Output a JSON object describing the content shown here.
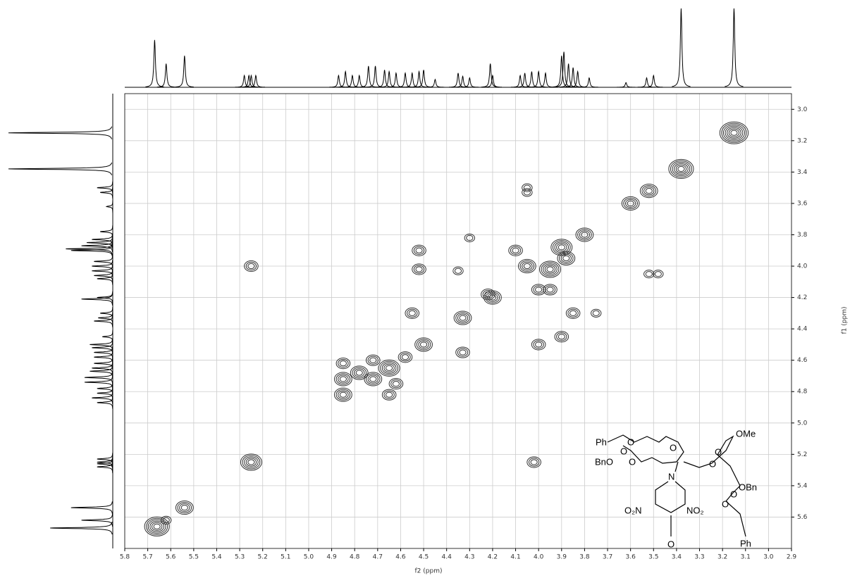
{
  "chart_data": {
    "type": "contour",
    "x_label": "f2 (ppm)",
    "y_label": "f1 (ppm)",
    "xlim": [
      5.8,
      2.9
    ],
    "ylim": [
      2.9,
      5.8
    ],
    "xticks": [
      5.8,
      5.7,
      5.6,
      5.5,
      5.4,
      5.3,
      5.2,
      5.1,
      {
        "value": 5,
        "label": "5.0"
      },
      4.9,
      4.8,
      4.7,
      4.6,
      4.5,
      4.4,
      4.3,
      4.2,
      4.1,
      {
        "value": 4,
        "label": "4.0"
      },
      3.9,
      3.8,
      3.7,
      3.6,
      3.5,
      3.4,
      3.3,
      3.2,
      3.1,
      {
        "value": 3,
        "label": "3.0"
      },
      2.9
    ],
    "yticks": [
      {
        "value": 3,
        "label": "3.0"
      },
      3.2,
      3.4,
      3.6,
      3.8,
      {
        "value": 4,
        "label": "4.0"
      },
      4.2,
      4.4,
      4.6,
      4.8,
      {
        "value": 5,
        "label": "5.0"
      },
      5.2,
      5.4,
      5.6
    ],
    "grid": true,
    "color": "#333333",
    "peaks": {
      "x": [
        3.15,
        3.38,
        3.52,
        3.6,
        3.52,
        3.48,
        4.05,
        4.05,
        3.8,
        3.9,
        3.88,
        3.95,
        4.05,
        4.0,
        4.2,
        4.22,
        4.33,
        4.5,
        4.52,
        4.52,
        4.55,
        4.33,
        4.02,
        5.25,
        5.25,
        5.66,
        5.62,
        5.54,
        4.85,
        4.85,
        4.85,
        4.78,
        4.72,
        4.65,
        4.65,
        4.58,
        4.72,
        4.62,
        4.0,
        3.9,
        3.85,
        3.75,
        3.95,
        4.35,
        4.3,
        4.1
      ],
      "y": [
        3.15,
        3.38,
        3.52,
        3.6,
        4.05,
        4.05,
        3.5,
        3.53,
        3.8,
        3.88,
        3.95,
        4.02,
        4.0,
        4.15,
        4.2,
        4.18,
        4.33,
        4.5,
        3.9,
        4.02,
        4.3,
        4.55,
        5.25,
        4.0,
        5.25,
        5.66,
        5.62,
        5.54,
        4.62,
        4.72,
        4.82,
        4.68,
        4.72,
        4.65,
        4.82,
        4.58,
        4.6,
        4.75,
        4.5,
        4.45,
        4.3,
        4.3,
        4.15,
        4.03,
        3.82,
        3.9
      ],
      "intensity": [
        7,
        6,
        4,
        4,
        2,
        2,
        2,
        2,
        4,
        5,
        4,
        5,
        4,
        3,
        4,
        3,
        4,
        4,
        3,
        3,
        3,
        3,
        3,
        3,
        5,
        6,
        2,
        4,
        3,
        4,
        4,
        4,
        4,
        5,
        3,
        3,
        3,
        3,
        3,
        3,
        3,
        2,
        3,
        2,
        2,
        3
      ]
    },
    "projection": {
      "x": [
        5.67,
        5.62,
        5.54,
        5.28,
        5.26,
        5.25,
        5.23,
        4.87,
        4.84,
        4.81,
        4.78,
        4.74,
        4.71,
        4.67,
        4.65,
        4.62,
        4.58,
        4.55,
        4.52,
        4.5,
        4.45,
        4.35,
        4.33,
        4.3,
        4.21,
        4.2,
        4.08,
        4.06,
        4.03,
        4.0,
        3.97,
        3.9,
        3.89,
        3.87,
        3.85,
        3.83,
        3.78,
        3.62,
        3.53,
        3.5,
        3.38,
        3.15
      ],
      "height": [
        0.6,
        0.3,
        0.4,
        0.15,
        0.15,
        0.15,
        0.15,
        0.15,
        0.2,
        0.15,
        0.15,
        0.27,
        0.27,
        0.22,
        0.2,
        0.18,
        0.18,
        0.18,
        0.2,
        0.22,
        0.1,
        0.18,
        0.14,
        0.12,
        0.3,
        0.15,
        0.15,
        0.18,
        0.2,
        0.2,
        0.18,
        0.4,
        0.45,
        0.3,
        0.25,
        0.2,
        0.12,
        0.06,
        0.12,
        0.15,
        1.0,
        1.0
      ]
    }
  },
  "structure": {
    "labels": [
      "Ph",
      "O",
      "O",
      "O",
      "OMe",
      "BnO",
      "O",
      "N",
      "O",
      "O",
      "OBn",
      "O",
      "O",
      "Ph",
      "O₂N",
      "NO₂",
      "O"
    ]
  }
}
